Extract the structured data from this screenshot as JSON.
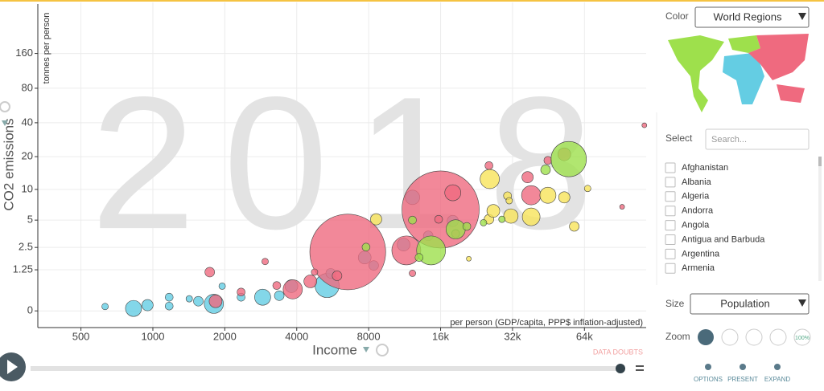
{
  "chart_data": {
    "type": "scatter",
    "year": "2018",
    "y_title": "CO2 emissions",
    "y_unit": "tonnes per person",
    "x_title": "Income",
    "x_unit": "per person (GDP/capita, PPP$ inflation-adjusted)",
    "note": "DATA DOUBTS",
    "x_scale": "log",
    "y_scale": "symlog",
    "xlim": [
      330,
      116000
    ],
    "ylim": [
      -0.39,
      440
    ],
    "xticks": [
      500,
      1000,
      2000,
      4000,
      8000,
      {
        "value": 16000,
        "label": "16k"
      },
      {
        "value": 32000,
        "label": "32k"
      },
      {
        "value": 64000,
        "label": "64k"
      }
    ],
    "yticks": [
      0,
      1.25,
      2.5,
      5,
      10,
      20,
      40,
      80,
      160
    ],
    "grid": true,
    "series": [
      {
        "color": "#64cde3",
        "x": [
          631,
          830,
          950,
          1170,
          1170,
          1800,
          1550,
          1420,
          1950,
          2340,
          2880,
          3380,
          3800,
          5360,
          5550,
          7700,
          8400,
          11200,
          12200,
          18000,
          14200
        ],
        "values": [
          0.09,
          0.05,
          0.12,
          0.31,
          0.1,
          0.15,
          0.21,
          0.27,
          0.63,
          0.31,
          0.31,
          0.35,
          0.63,
          0.65,
          1.1,
          1.87,
          1.45,
          2.7,
          8.4,
          4.9,
          3.4
        ],
        "sizes": [
          10,
          61,
          30,
          15,
          15,
          87,
          22,
          10,
          10,
          15,
          61,
          22,
          39,
          137,
          22,
          39,
          22,
          39,
          49,
          30,
          22
        ]
      },
      {
        "color": "#ef6a7f",
        "x": [
          6540,
          16000,
          1730,
          1830,
          2340,
          2950,
          3300,
          3850,
          4560,
          4750,
          5900,
          11500,
          12200,
          15700,
          18500,
          25500,
          37000,
          38300,
          45000,
          52700,
          92000,
          114000,
          18000
        ],
        "values": [
          2.2,
          6.4,
          1.15,
          0.21,
          0.45,
          1.65,
          0.65,
          0.53,
          0.79,
          1.15,
          1.0,
          2.3,
          1.1,
          5.1,
          3.6,
          16.6,
          13,
          8.8,
          18.5,
          21,
          6.8,
          38,
          9.3
        ],
        "sizes": [
          1350,
          1400,
          22,
          39,
          15,
          10,
          15,
          87,
          39,
          10,
          22,
          197,
          10,
          15,
          15,
          15,
          30,
          87,
          15,
          39,
          5.5,
          5.5,
          61
        ]
      },
      {
        "color": "#f8e35a",
        "x": [
          8600,
          25700,
          30500,
          25500,
          26600,
          31500,
          38300,
          45000,
          52700,
          66000,
          31000,
          58000,
          21000
        ],
        "values": [
          5.1,
          12.5,
          8.7,
          5.1,
          6.2,
          5.5,
          5.4,
          8.8,
          8.4,
          10.2,
          7.8,
          4.3,
          1.8
        ],
        "sizes": [
          30,
          87,
          15,
          22,
          39,
          49,
          74,
          61,
          30,
          10,
          10,
          22,
          5.5
        ]
      },
      {
        "color": "#9ee04c",
        "x": [
          55000,
          14600,
          18500,
          12200,
          20600,
          24200,
          28900,
          44000,
          13000,
          7800
        ],
        "values": [
          19,
          2.3,
          4.0,
          5.0,
          4.3,
          4.7,
          5.1,
          15.2,
          1.87,
          2.52
        ],
        "sizes": [
          294,
          197,
          87,
          15,
          15,
          10,
          10,
          22,
          15,
          15
        ]
      }
    ]
  },
  "panel": {
    "color_label": "Color",
    "color_value": "World Regions",
    "select_label": "Select",
    "search_placeholder": "Search...",
    "countries": [
      "Afghanistan",
      "Albania",
      "Algeria",
      "Andorra",
      "Angola",
      "Antigua and Barbuda",
      "Argentina",
      "Armenia"
    ],
    "size_label": "Size",
    "size_value": "Population",
    "zoom_label": "Zoom",
    "zoom_reset": "100%",
    "buttons": [
      "OPTIONS",
      "PRESENT",
      "EXPAND"
    ]
  }
}
